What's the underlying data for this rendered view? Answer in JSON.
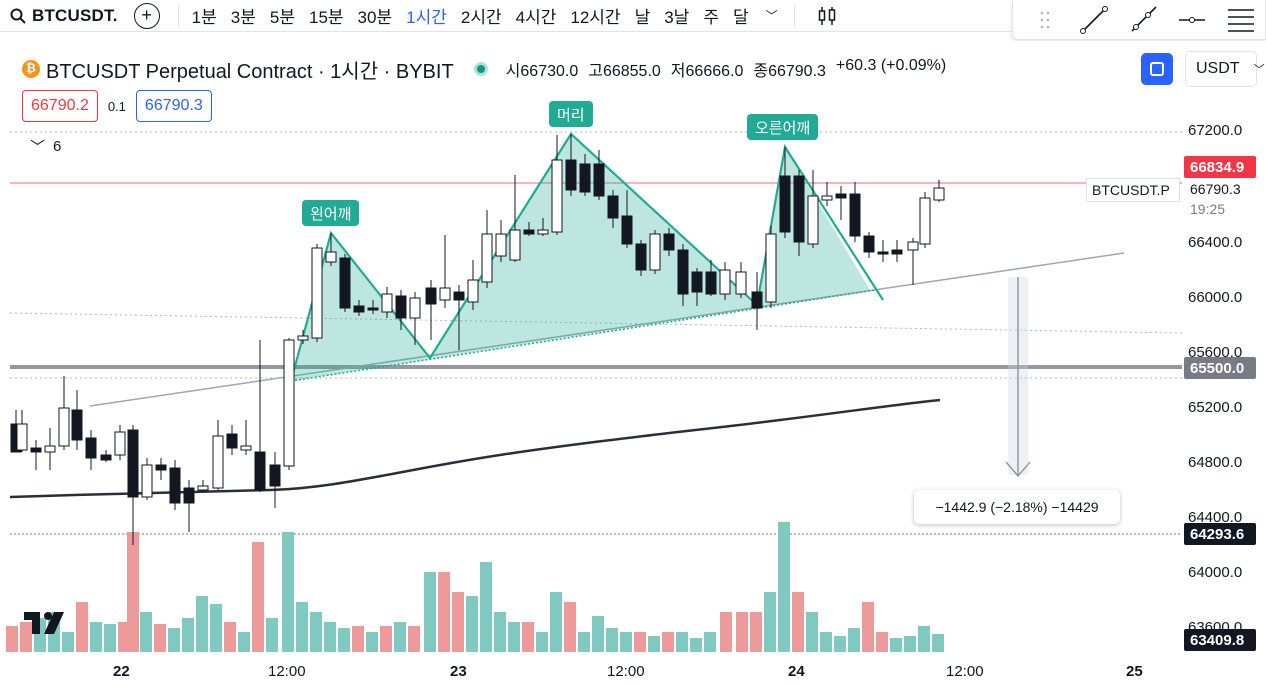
{
  "toolbar": {
    "symbol": "BTCUSDT.",
    "intervals": [
      "1분",
      "3분",
      "5분",
      "15분",
      "30분",
      "1시간",
      "2시간",
      "4시간",
      "12시간",
      "날",
      "3날",
      "주",
      "달"
    ],
    "active_interval": "1시간"
  },
  "legend": {
    "title": "BTCUSDT Perpetual Contract · 1시간 · BYBIT",
    "open": "시66730.0",
    "high": "고66855.0",
    "low": "저66666.0",
    "close": "종66790.3",
    "change": "+60.3 (+0.09%)",
    "indicators_count": "6"
  },
  "order": {
    "sell_price": "66790.2",
    "spread": "0.1",
    "buy_price": "66790.3"
  },
  "currency": {
    "selected": "USDT"
  },
  "price_axis": {
    "labels": [
      "67200.0",
      "66400.0",
      "66000.0",
      "65600.0",
      "65200.0",
      "64800.0",
      "64400.0",
      "64000.0",
      "63600.0"
    ],
    "tag_high": "66834.9",
    "tag_level": "65500.0",
    "tag_low1": "64293.6",
    "tag_low2": "63409.8",
    "current_price": "66790.3",
    "countdown": "19:25",
    "symbol_tag": "BTCUSDT.P"
  },
  "time_axis": {
    "labels": [
      "22",
      "12:00",
      "23",
      "12:00",
      "24",
      "12:00",
      "25"
    ]
  },
  "pattern": {
    "left_shoulder": "왼어깨",
    "head": "머리",
    "right_shoulder": "오른어깨"
  },
  "measure": {
    "text": "−1442.9 (−2.18%) −14429"
  },
  "colors": {
    "up": "#ffffff",
    "down": "#131722",
    "vol_up": "#7fc9c1",
    "vol_down": "#ec9a9a",
    "pattern": "#22ab94",
    "accent": "#2962ff",
    "red": "#f23645"
  },
  "icons": {
    "search": "search-icon",
    "add": "plus-circle-icon",
    "chart_type": "candlestick-icon",
    "fullscreen": "fullscreen-icon"
  }
}
